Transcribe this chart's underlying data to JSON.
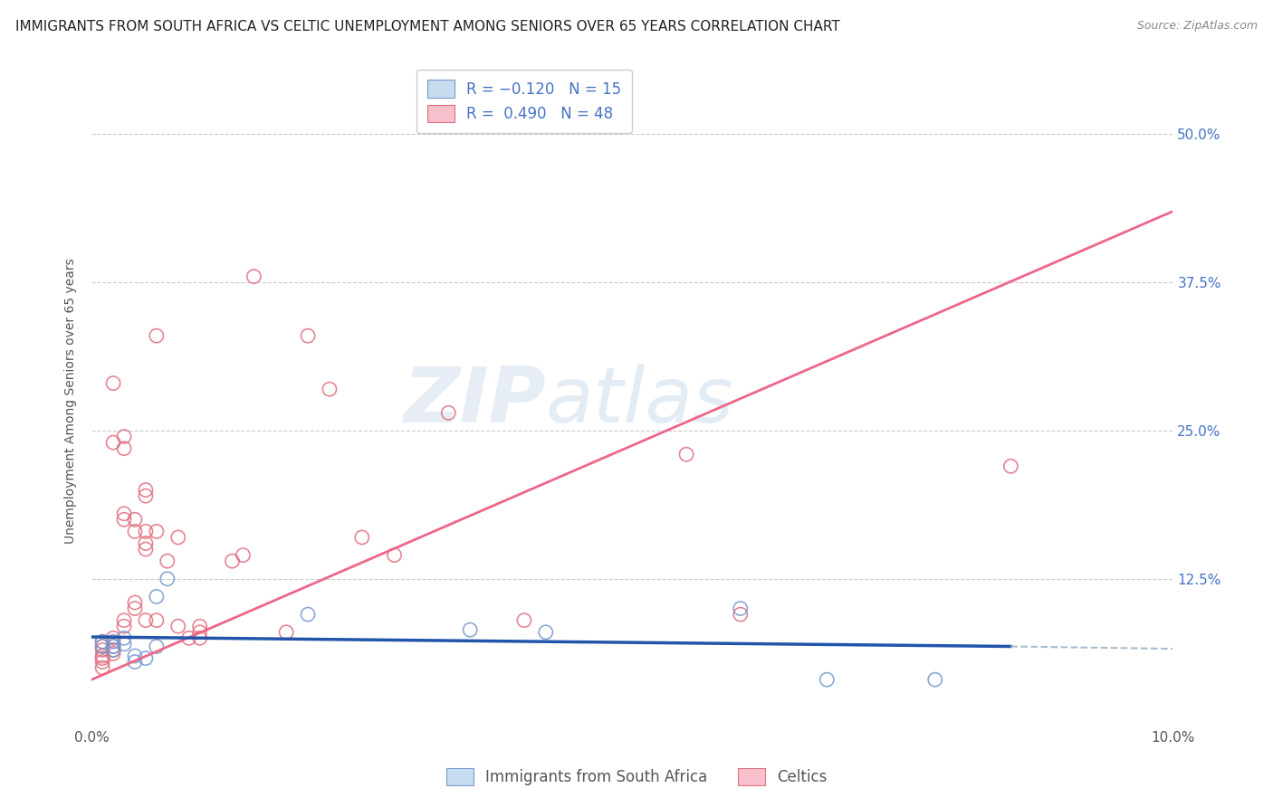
{
  "title": "IMMIGRANTS FROM SOUTH AFRICA VS CELTIC UNEMPLOYMENT AMONG SENIORS OVER 65 YEARS CORRELATION CHART",
  "source": "Source: ZipAtlas.com",
  "ylabel": "Unemployment Among Seniors over 65 years",
  "xlim": [
    0.0,
    0.1
  ],
  "ylim": [
    0.0,
    0.55
  ],
  "yticks": [
    0.0,
    0.125,
    0.25,
    0.375,
    0.5
  ],
  "xticks": [
    0.0,
    0.01,
    0.02,
    0.03,
    0.04,
    0.05,
    0.06,
    0.07,
    0.08,
    0.09,
    0.1
  ],
  "xtick_labels": [
    "0.0%",
    "",
    "",
    "",
    "",
    "",
    "",
    "",
    "",
    "",
    "10.0%"
  ],
  "watermark_zip": "ZIP",
  "watermark_atlas": "atlas",
  "background_color": "#ffffff",
  "grid_color": "#cccccc",
  "scatter_size": 120,
  "blue_color": "#aaccee",
  "pink_color": "#f4a0b0",
  "blue_edge_color": "#7799cc",
  "pink_edge_color": "#e07080",
  "blue_line_color": "#2255aa",
  "pink_line_color": "#ee6688",
  "blue_line_dashed_color": "#aabbcc",
  "right_tick_color": "#4472c4",
  "tick_fontsize": 11,
  "title_fontsize": 11,
  "ylabel_fontsize": 10,
  "legend_fontsize": 12,
  "blue_scatter": [
    [
      0.001,
      0.072
    ],
    [
      0.001,
      0.068
    ],
    [
      0.002,
      0.068
    ],
    [
      0.002,
      0.065
    ],
    [
      0.002,
      0.072
    ],
    [
      0.003,
      0.075
    ],
    [
      0.003,
      0.07
    ],
    [
      0.004,
      0.06
    ],
    [
      0.004,
      0.055
    ],
    [
      0.005,
      0.058
    ],
    [
      0.006,
      0.068
    ],
    [
      0.006,
      0.11
    ],
    [
      0.007,
      0.125
    ],
    [
      0.02,
      0.095
    ],
    [
      0.035,
      0.082
    ],
    [
      0.042,
      0.08
    ],
    [
      0.06,
      0.1
    ],
    [
      0.068,
      0.04
    ],
    [
      0.078,
      0.04
    ]
  ],
  "pink_scatter": [
    [
      0.001,
      0.072
    ],
    [
      0.001,
      0.068
    ],
    [
      0.001,
      0.065
    ],
    [
      0.001,
      0.06
    ],
    [
      0.001,
      0.058
    ],
    [
      0.001,
      0.055
    ],
    [
      0.001,
      0.05
    ],
    [
      0.002,
      0.29
    ],
    [
      0.002,
      0.24
    ],
    [
      0.002,
      0.075
    ],
    [
      0.002,
      0.068
    ],
    [
      0.002,
      0.065
    ],
    [
      0.002,
      0.062
    ],
    [
      0.003,
      0.245
    ],
    [
      0.003,
      0.235
    ],
    [
      0.003,
      0.18
    ],
    [
      0.003,
      0.175
    ],
    [
      0.003,
      0.09
    ],
    [
      0.003,
      0.085
    ],
    [
      0.004,
      0.175
    ],
    [
      0.004,
      0.165
    ],
    [
      0.004,
      0.105
    ],
    [
      0.004,
      0.1
    ],
    [
      0.005,
      0.2
    ],
    [
      0.005,
      0.195
    ],
    [
      0.005,
      0.165
    ],
    [
      0.005,
      0.155
    ],
    [
      0.005,
      0.15
    ],
    [
      0.005,
      0.09
    ],
    [
      0.006,
      0.33
    ],
    [
      0.006,
      0.165
    ],
    [
      0.006,
      0.09
    ],
    [
      0.007,
      0.14
    ],
    [
      0.008,
      0.16
    ],
    [
      0.008,
      0.085
    ],
    [
      0.009,
      0.075
    ],
    [
      0.01,
      0.085
    ],
    [
      0.01,
      0.08
    ],
    [
      0.01,
      0.075
    ],
    [
      0.013,
      0.14
    ],
    [
      0.014,
      0.145
    ],
    [
      0.015,
      0.38
    ],
    [
      0.018,
      0.08
    ],
    [
      0.02,
      0.33
    ],
    [
      0.022,
      0.285
    ],
    [
      0.025,
      0.16
    ],
    [
      0.028,
      0.145
    ],
    [
      0.033,
      0.265
    ],
    [
      0.04,
      0.09
    ],
    [
      0.055,
      0.23
    ],
    [
      0.06,
      0.095
    ],
    [
      0.085,
      0.22
    ]
  ],
  "blue_line": {
    "x0": 0.0,
    "y0": 0.076,
    "x1": 0.085,
    "y1": 0.068
  },
  "blue_line_dashed": {
    "x0": 0.085,
    "y0": 0.068,
    "x1": 0.1,
    "y1": 0.066
  },
  "pink_line": {
    "x0": 0.0,
    "y0": 0.04,
    "x1": 0.1,
    "y1": 0.435
  }
}
